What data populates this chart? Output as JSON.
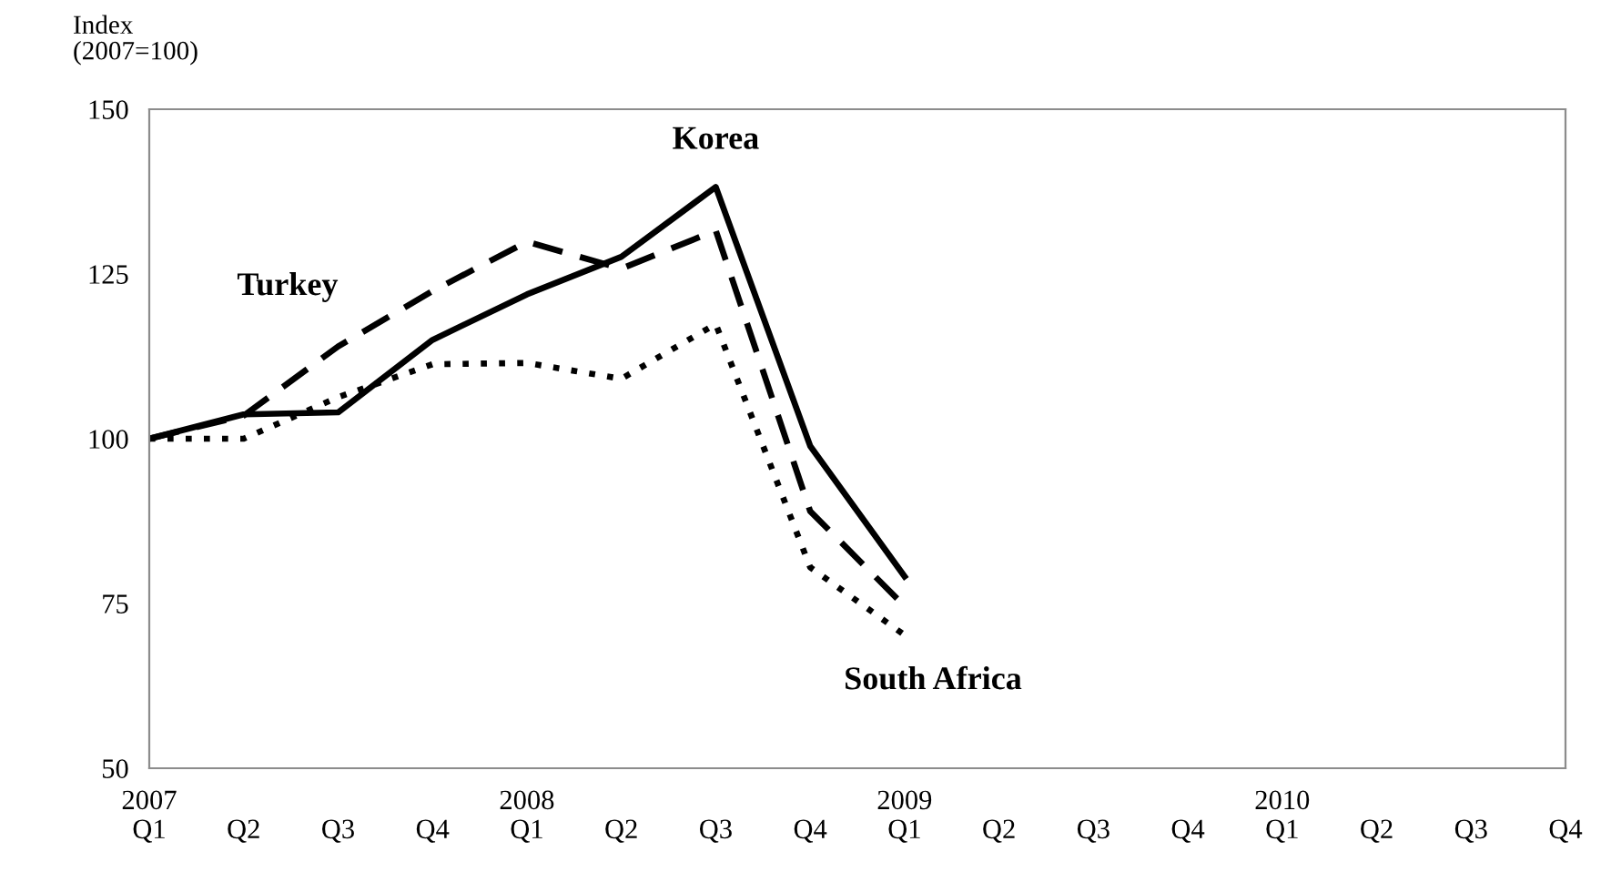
{
  "chart_data": {
    "type": "line",
    "ylabel": "Index\n(2007=100)",
    "categories": [
      "2007\nQ1",
      "Q2",
      "Q3",
      "Q4",
      "2008\nQ1",
      "Q2",
      "Q3",
      "Q4",
      "2009\nQ1",
      "Q2",
      "Q3",
      "Q4",
      "2010\nQ1",
      "Q2",
      "Q3",
      "Q4"
    ],
    "series": [
      {
        "name": "Korea",
        "color": "#000000",
        "line_style": "solid",
        "values": [
          100,
          103.7,
          104,
          115,
          121.9,
          127.6,
          138.2,
          98.9,
          79.1,
          null,
          null,
          null,
          null,
          null,
          null,
          null
        ]
      },
      {
        "name": "Turkey",
        "color": "#000000",
        "line_style": "dashed",
        "values": [
          100,
          103.5,
          114,
          122.4,
          129.9,
          125.8,
          131.6,
          89,
          74.6,
          null,
          null,
          null,
          null,
          null,
          null,
          null
        ]
      },
      {
        "name": "South Africa",
        "color": "#000000",
        "line_style": "dotted",
        "values": [
          100,
          100,
          106.3,
          111.3,
          111.5,
          109.1,
          117.4,
          80.5,
          70.2,
          null,
          null,
          null,
          null,
          null,
          null,
          null
        ]
      }
    ],
    "ylim": [
      50,
      150
    ],
    "yticks": [
      50,
      75,
      100,
      125,
      150
    ],
    "grid": false,
    "legend": false
  }
}
